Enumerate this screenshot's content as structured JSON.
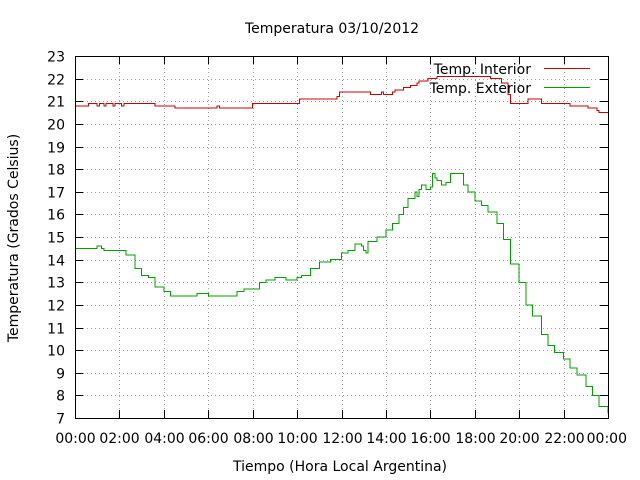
{
  "chart_data": {
    "type": "line",
    "title": "Temperatura 03/10/2012",
    "xlabel": "Tiempo (Hora Local Argentina)",
    "ylabel": "Temperatura (Grados Celsius)",
    "x_unit": "hours",
    "xlim": [
      0,
      24
    ],
    "ylim": [
      7,
      23
    ],
    "x_ticks": [
      {
        "value": 0,
        "label": "00:00"
      },
      {
        "value": 2,
        "label": "02:00"
      },
      {
        "value": 4,
        "label": "04:00"
      },
      {
        "value": 6,
        "label": "06:00"
      },
      {
        "value": 8,
        "label": "08:00"
      },
      {
        "value": 10,
        "label": "10:00"
      },
      {
        "value": 12,
        "label": "12:00"
      },
      {
        "value": 14,
        "label": "14:00"
      },
      {
        "value": 16,
        "label": "16:00"
      },
      {
        "value": 18,
        "label": "18:00"
      },
      {
        "value": 20,
        "label": "20:00"
      },
      {
        "value": 22,
        "label": "22:00"
      },
      {
        "value": 24,
        "label": "00:00"
      }
    ],
    "y_ticks": [
      {
        "value": 7,
        "label": "7"
      },
      {
        "value": 8,
        "label": "8"
      },
      {
        "value": 9,
        "label": "9"
      },
      {
        "value": 10,
        "label": "10"
      },
      {
        "value": 11,
        "label": "11"
      },
      {
        "value": 12,
        "label": "12"
      },
      {
        "value": 13,
        "label": "13"
      },
      {
        "value": 14,
        "label": "14"
      },
      {
        "value": 15,
        "label": "15"
      },
      {
        "value": 16,
        "label": "16"
      },
      {
        "value": 17,
        "label": "17"
      },
      {
        "value": 18,
        "label": "18"
      },
      {
        "value": 19,
        "label": "19"
      },
      {
        "value": 20,
        "label": "20"
      },
      {
        "value": 21,
        "label": "21"
      },
      {
        "value": 22,
        "label": "22"
      },
      {
        "value": 23,
        "label": "23"
      }
    ],
    "grid": true,
    "legend_position": "top-right",
    "series": [
      {
        "name": "Temp. Interior",
        "color": "#cc0000",
        "step": true,
        "x": [
          0,
          0.5,
          0.6,
          1.0,
          1.1,
          1.3,
          1.4,
          1.7,
          1.8,
          2.1,
          2.2,
          3.5,
          3.6,
          4.4,
          4.5,
          6.4,
          6.5,
          7.9,
          8.0,
          10.0,
          10.1,
          11.8,
          11.9,
          13.2,
          13.3,
          13.8,
          13.9,
          14.3,
          14.4,
          14.7,
          14.8,
          15.0,
          15.1,
          15.4,
          15.5,
          15.8,
          15.9,
          16.2,
          16.3,
          18.6,
          18.7,
          19.1,
          19.2,
          19.5,
          19.6,
          20.3,
          20.4,
          20.9,
          21.0,
          22.2,
          22.3,
          23.0,
          23.1,
          23.5,
          23.6,
          24.0
        ],
        "y": [
          20.8,
          20.8,
          20.9,
          20.8,
          20.9,
          20.8,
          20.9,
          20.8,
          20.9,
          20.8,
          20.9,
          20.9,
          20.8,
          20.8,
          20.7,
          20.8,
          20.7,
          20.7,
          20.9,
          20.9,
          21.1,
          21.2,
          21.4,
          21.4,
          21.3,
          21.4,
          21.3,
          21.4,
          21.5,
          21.5,
          21.6,
          21.6,
          21.7,
          21.8,
          21.9,
          21.9,
          22.0,
          22.0,
          22.1,
          22.1,
          22.0,
          22.0,
          21.8,
          21.3,
          20.9,
          20.9,
          21.1,
          21.1,
          20.9,
          20.9,
          20.8,
          20.8,
          20.7,
          20.6,
          20.5,
          20.5
        ]
      },
      {
        "name": "Temp. Exterior",
        "color": "#00a000",
        "step": true,
        "x": [
          0,
          0.9,
          1.0,
          1.2,
          1.3,
          2.0,
          2.3,
          2.7,
          3.0,
          3.3,
          3.6,
          4.0,
          4.3,
          5.0,
          5.5,
          6.0,
          6.5,
          7.0,
          7.3,
          7.6,
          8.0,
          8.3,
          8.6,
          9.0,
          9.5,
          10.0,
          10.2,
          10.6,
          11.0,
          11.5,
          12.0,
          12.3,
          12.6,
          12.9,
          13.0,
          13.1,
          13.2,
          13.4,
          13.6,
          14.0,
          14.3,
          14.6,
          14.8,
          15.0,
          15.3,
          15.4,
          15.5,
          15.6,
          15.8,
          16.0,
          16.1,
          16.2,
          16.3,
          16.5,
          16.7,
          16.9,
          17.3,
          17.5,
          17.7,
          18.0,
          18.3,
          18.6,
          19.0,
          19.3,
          19.6,
          20.0,
          20.3,
          20.6,
          21.0,
          21.3,
          21.6,
          22.0,
          22.3,
          22.6,
          23.0,
          23.3,
          23.6,
          24.0
        ],
        "y": [
          14.5,
          14.5,
          14.6,
          14.5,
          14.4,
          14.4,
          14.2,
          13.6,
          13.3,
          13.2,
          12.8,
          12.6,
          12.4,
          12.4,
          12.5,
          12.4,
          12.4,
          12.4,
          12.6,
          12.7,
          12.7,
          13.0,
          13.1,
          13.2,
          13.1,
          13.2,
          13.3,
          13.6,
          13.9,
          14.0,
          14.3,
          14.4,
          14.7,
          14.6,
          14.4,
          14.3,
          14.8,
          14.8,
          15.0,
          15.3,
          15.6,
          16.0,
          16.3,
          16.7,
          17.0,
          16.8,
          17.1,
          17.3,
          17.1,
          17.2,
          17.8,
          17.6,
          17.5,
          17.3,
          17.4,
          17.8,
          17.8,
          17.3,
          17.0,
          16.6,
          16.4,
          16.1,
          15.6,
          14.9,
          13.8,
          13.0,
          12.0,
          11.5,
          10.7,
          10.2,
          9.9,
          9.6,
          9.2,
          8.9,
          8.4,
          8.0,
          7.5,
          7.2
        ]
      }
    ]
  }
}
